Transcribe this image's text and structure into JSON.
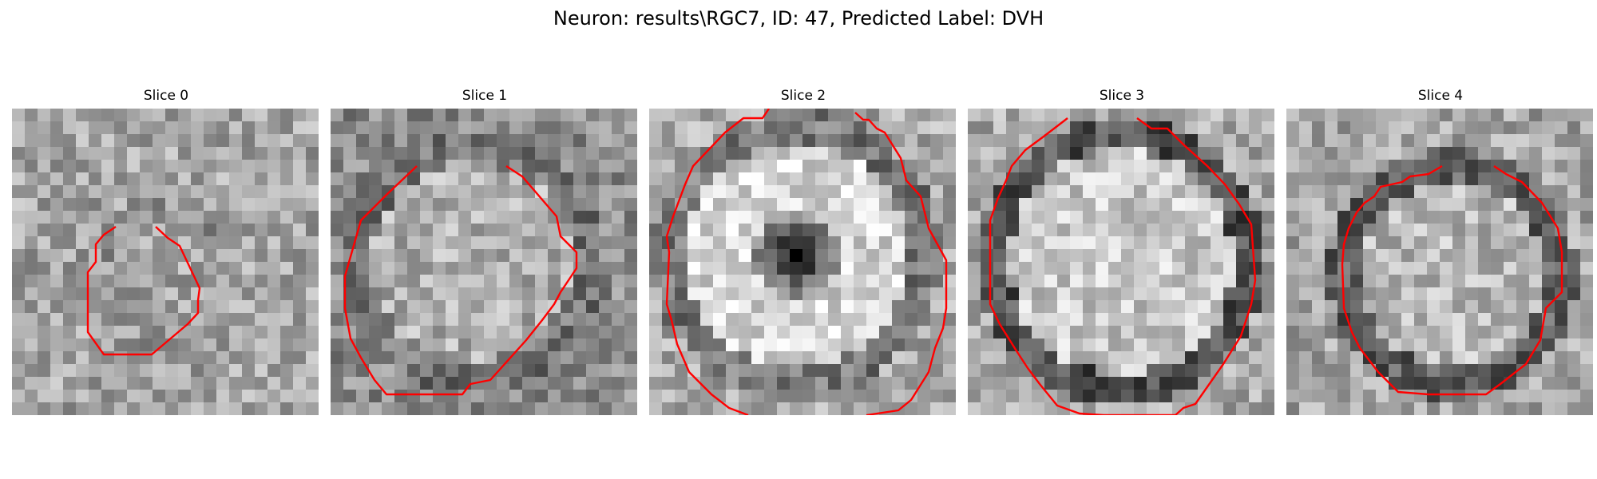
{
  "figure": {
    "title": "Neuron: results\\RGC7, ID: 47, Predicted Label: DVH"
  },
  "panels": [
    {
      "title": "Slice 0",
      "contour_color": "#ff0000"
    },
    {
      "title": "Slice 1",
      "contour_color": "#ff0000"
    },
    {
      "title": "Slice 2",
      "contour_color": "#ff0000"
    },
    {
      "title": "Slice 3",
      "contour_color": "#ff0000"
    },
    {
      "title": "Slice 4",
      "contour_color": "#ff0000"
    }
  ]
}
